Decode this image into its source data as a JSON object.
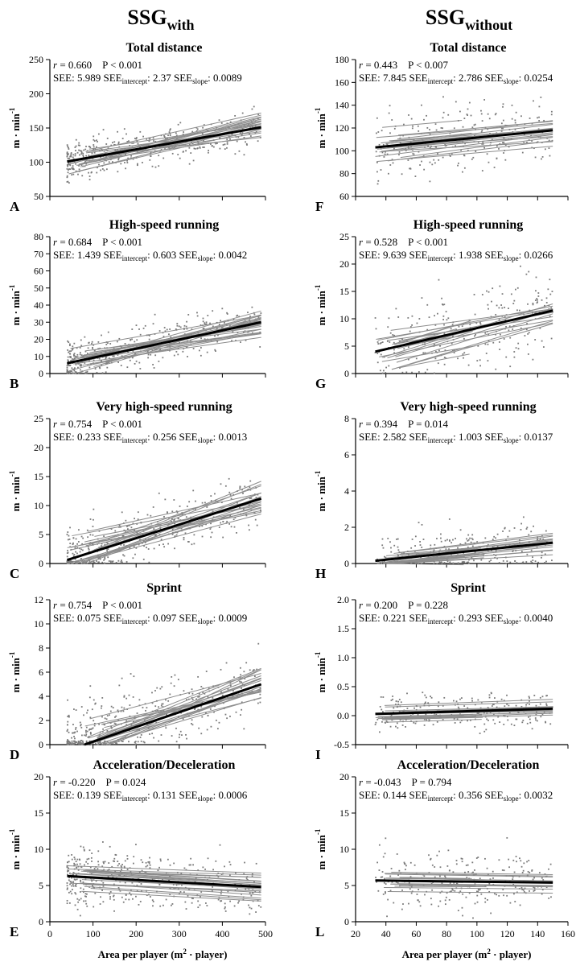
{
  "figure": {
    "col_titles": [
      {
        "main": "SSG",
        "sub": "with"
      },
      {
        "main": "SSG",
        "sub": "without"
      }
    ],
    "ylabel": {
      "main": "m · min",
      "sup": "-1"
    },
    "xlabel": {
      "pre": "Area per player (m",
      "sup": "2",
      "post": " · player)"
    },
    "colors": {
      "individual": "#8c8c8c",
      "mean": "#000000",
      "points": "#7a7a7a"
    }
  },
  "chart_data": [
    {
      "type": "scatter",
      "panel": "A",
      "title": "Total distance",
      "r": "0.660",
      "p": "P < 0.001",
      "see": "5.989",
      "see_intercept": "2.37",
      "see_slope": "0.0089",
      "xlim": [
        0,
        500
      ],
      "xticks": [
        0,
        100,
        200,
        300,
        400,
        500
      ],
      "ylim": [
        50,
        250
      ],
      "yticks": [
        50,
        100,
        150,
        200,
        250
      ],
      "mean_line": [
        [
          40,
          101
        ],
        [
          490,
          151
        ]
      ],
      "points_band": {
        "x": [
          40,
          490
        ],
        "center": [
          101,
          151
        ],
        "spread": 14
      }
    },
    {
      "type": "scatter",
      "panel": "B",
      "title": "High-speed running",
      "r": "0.684",
      "p": "P < 0.001",
      "see": "1.439",
      "see_intercept": "0.603",
      "see_slope": "0.0042",
      "xlim": [
        0,
        500
      ],
      "xticks": [
        0,
        100,
        200,
        300,
        400,
        500
      ],
      "ylim": [
        0,
        80
      ],
      "yticks": [
        0,
        10,
        20,
        30,
        40,
        50,
        60,
        70,
        80
      ],
      "mean_line": [
        [
          40,
          6
        ],
        [
          490,
          30
        ]
      ],
      "points_band": {
        "x": [
          40,
          490
        ],
        "center": [
          6,
          30
        ],
        "spread": 6
      }
    },
    {
      "type": "scatter",
      "panel": "C",
      "title": "Very high-speed running",
      "r": "0.754",
      "p": "P < 0.001",
      "see": "0.233",
      "see_intercept": "0.256",
      "see_slope": "0.0013",
      "xlim": [
        0,
        500
      ],
      "xticks": [
        0,
        100,
        200,
        300,
        400,
        500
      ],
      "ylim": [
        0,
        25
      ],
      "yticks": [
        0,
        5,
        10,
        15,
        20,
        25
      ],
      "mean_line": [
        [
          40,
          0.6
        ],
        [
          490,
          11.2
        ]
      ],
      "points_band": {
        "x": [
          40,
          490
        ],
        "center": [
          0.6,
          11.2
        ],
        "spread": 2.5
      }
    },
    {
      "type": "scatter",
      "panel": "D",
      "title": "Sprint",
      "r": "0.754",
      "p": "P < 0.001",
      "see": "0.075",
      "see_intercept": "0.097",
      "see_slope": "0.0009",
      "xlim": [
        0,
        500
      ],
      "xticks": [
        0,
        100,
        200,
        300,
        400,
        500
      ],
      "ylim": [
        0,
        12
      ],
      "yticks": [
        0,
        2,
        4,
        6,
        8,
        10,
        12
      ],
      "mean_line": [
        [
          80,
          0
        ],
        [
          490,
          5
        ]
      ],
      "points_band": {
        "x": [
          40,
          490
        ],
        "center": [
          0,
          5
        ],
        "spread": 1.5
      }
    },
    {
      "type": "scatter",
      "panel": "E",
      "title": "Acceleration/Deceleration",
      "r": "-0.220",
      "p": "P = 0.024",
      "see": "0.139",
      "see_intercept": "0.131",
      "see_slope": "0.0006",
      "xlim": [
        0,
        500
      ],
      "xticks": [
        0,
        100,
        200,
        300,
        400,
        500
      ],
      "ylim": [
        0,
        20
      ],
      "yticks": [
        0,
        5,
        10,
        15,
        20
      ],
      "mean_line": [
        [
          40,
          6.3
        ],
        [
          490,
          4.8
        ]
      ],
      "points_band": {
        "x": [
          40,
          490
        ],
        "center": [
          6.3,
          4.8
        ],
        "spread": 2
      }
    },
    {
      "type": "scatter",
      "panel": "F",
      "title": "Total distance",
      "r": "0.443",
      "p": "P < 0.007",
      "see": "7.845",
      "see_intercept": "2.786",
      "see_slope": "0.0254",
      "xlim": [
        20,
        160
      ],
      "xticks": [
        20,
        40,
        60,
        80,
        100,
        120,
        140,
        160
      ],
      "ylim": [
        60,
        180
      ],
      "yticks": [
        60,
        80,
        100,
        120,
        140,
        160,
        180
      ],
      "mean_line": [
        [
          33,
          103
        ],
        [
          150,
          118
        ]
      ],
      "points_band": {
        "x": [
          33,
          150
        ],
        "center": [
          103,
          118
        ],
        "spread": 14
      }
    },
    {
      "type": "scatter",
      "panel": "G",
      "title": "High-speed running",
      "r": "0.528",
      "p": "P < 0.001",
      "see": "9.639",
      "see_intercept": "1.938",
      "see_slope": "0.0266",
      "xlim": [
        20,
        160
      ],
      "xticks": [
        20,
        40,
        60,
        80,
        100,
        120,
        140,
        160
      ],
      "ylim": [
        0,
        25
      ],
      "yticks": [
        0,
        5,
        10,
        15,
        20,
        25
      ],
      "mean_line": [
        [
          33,
          4
        ],
        [
          150,
          11.5
        ]
      ],
      "points_band": {
        "x": [
          33,
          150
        ],
        "center": [
          4,
          11.5
        ],
        "spread": 3.5
      }
    },
    {
      "type": "scatter",
      "panel": "H",
      "title": "Very high-speed running",
      "r": "0.394",
      "p": "P = 0.014",
      "see": "2.582",
      "see_intercept": "1.003",
      "see_slope": "0.0137",
      "xlim": [
        20,
        160
      ],
      "xticks": [
        20,
        40,
        60,
        80,
        100,
        120,
        140,
        160
      ],
      "ylim": [
        0,
        8
      ],
      "yticks": [
        0,
        2,
        4,
        6,
        8
      ],
      "mean_line": [
        [
          33,
          0.15
        ],
        [
          150,
          1.15
        ]
      ],
      "points_band": {
        "x": [
          33,
          150
        ],
        "center": [
          0.15,
          1.15
        ],
        "spread": 0.7
      }
    },
    {
      "type": "scatter",
      "panel": "I",
      "title": "Sprint",
      "r": "0.200",
      "p": "P = 0.228",
      "see": "0.221",
      "see_intercept": "0.293",
      "see_slope": "0.0040",
      "xlim": [
        20,
        160
      ],
      "xticks": [
        20,
        40,
        60,
        80,
        100,
        120,
        140,
        160
      ],
      "ylim": [
        -0.5,
        2.0
      ],
      "yticks": [
        -0.5,
        0.0,
        0.5,
        1.0,
        1.5,
        2.0
      ],
      "mean_line": [
        [
          33,
          0.03
        ],
        [
          150,
          0.12
        ]
      ],
      "points_band": {
        "x": [
          33,
          150
        ],
        "center": [
          0.03,
          0.12
        ],
        "spread": 0.15
      }
    },
    {
      "type": "scatter",
      "panel": "L",
      "title": "Acceleration/Deceleration",
      "r": "-0.043",
      "p": "P = 0.794",
      "see": "0.144",
      "see_intercept": "0.356",
      "see_slope": "0.0032",
      "xlim": [
        20,
        160
      ],
      "xticks": [
        20,
        40,
        60,
        80,
        100,
        120,
        140,
        160
      ],
      "ylim": [
        0,
        20
      ],
      "yticks": [
        0,
        5,
        10,
        15,
        20
      ],
      "mean_line": [
        [
          33,
          5.7
        ],
        [
          150,
          5.4
        ]
      ],
      "points_band": {
        "x": [
          33,
          150
        ],
        "center": [
          5.7,
          5.4
        ],
        "spread": 2
      }
    }
  ]
}
